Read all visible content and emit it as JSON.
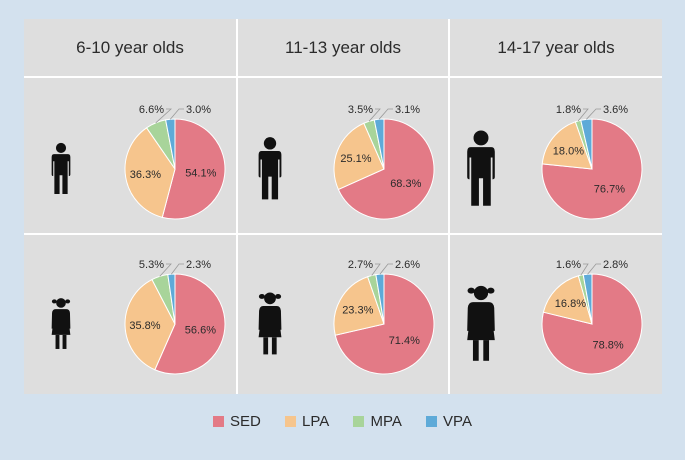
{
  "colors": {
    "SED": "#e37a86",
    "LPA": "#f6c58d",
    "MPA": "#a8d49a",
    "VPA": "#5eaad8"
  },
  "legend": [
    "SED",
    "LPA",
    "MPA",
    "VPA"
  ],
  "columns": [
    "6-10 year olds",
    "11-13 year olds",
    "14-17 year olds"
  ],
  "rows": [
    "boys",
    "girls"
  ],
  "chart_data": {
    "type": "pie",
    "series_labels": [
      "SED",
      "LPA",
      "MPA",
      "VPA"
    ],
    "charts": [
      {
        "age_group": "6-10 year olds",
        "sex": "boys",
        "values": [
          54.1,
          36.3,
          6.6,
          3.0
        ],
        "labels": [
          "54.1%",
          "36.3%",
          "6.6%",
          "3.0%"
        ]
      },
      {
        "age_group": "11-13 year olds",
        "sex": "boys",
        "values": [
          68.3,
          25.1,
          3.5,
          3.1
        ],
        "labels": [
          "68.3%",
          "25.1%",
          "3.5%",
          "3.1%"
        ]
      },
      {
        "age_group": "14-17 year olds",
        "sex": "boys",
        "values": [
          76.7,
          18.0,
          1.8,
          3.6
        ],
        "labels": [
          "76.7%",
          "18.0%",
          "1.8%",
          "3.6%"
        ]
      },
      {
        "age_group": "6-10 year olds",
        "sex": "girls",
        "values": [
          56.6,
          35.8,
          5.3,
          2.3
        ],
        "labels": [
          "56.6%",
          "35.8%",
          "5.3%",
          "2.3%"
        ]
      },
      {
        "age_group": "11-13 year olds",
        "sex": "girls",
        "values": [
          71.4,
          23.3,
          2.7,
          2.6
        ],
        "labels": [
          "71.4%",
          "23.3%",
          "2.7%",
          "2.6%"
        ]
      },
      {
        "age_group": "14-17 year olds",
        "sex": "girls",
        "values": [
          78.8,
          16.8,
          1.6,
          2.8
        ],
        "labels": [
          "78.8%",
          "16.8%",
          "1.6%",
          "2.8%"
        ]
      }
    ]
  }
}
